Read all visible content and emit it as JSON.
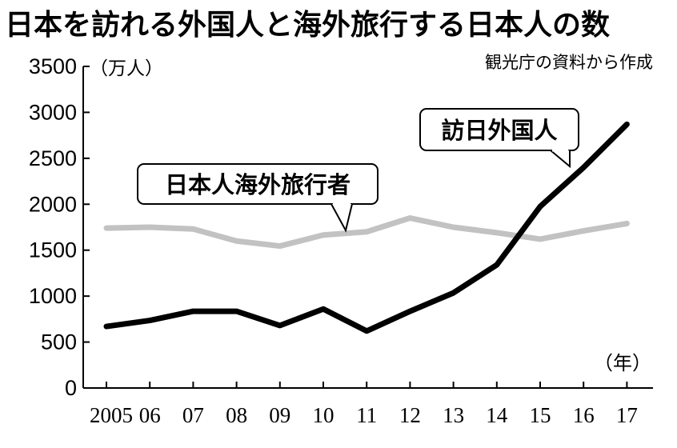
{
  "chart_data": {
    "type": "line",
    "title": "日本を訪れる外国人と海外旅行する日本人の数",
    "source": "観光庁の資料から作成",
    "ylabel": "（万人）",
    "xlabel": "（年）",
    "ylim": [
      0,
      3500
    ],
    "yticks": [
      "0",
      "500",
      "1000",
      "1500",
      "2000",
      "2500",
      "3000",
      "3500"
    ],
    "x": [
      "2005",
      "06",
      "07",
      "08",
      "09",
      "10",
      "11",
      "12",
      "13",
      "14",
      "15",
      "16",
      "17"
    ],
    "series": [
      {
        "name": "日本人海外旅行者",
        "color": "#c2c2c2",
        "values": [
          1740,
          1750,
          1730,
          1600,
          1545,
          1665,
          1700,
          1850,
          1750,
          1690,
          1620,
          1710,
          1790
        ]
      },
      {
        "name": "訪日外国人",
        "color": "#000000",
        "values": [
          670,
          735,
          835,
          835,
          680,
          860,
          620,
          835,
          1035,
          1340,
          1975,
          2400,
          2870
        ]
      }
    ],
    "grid": false,
    "legend": "callouts"
  }
}
